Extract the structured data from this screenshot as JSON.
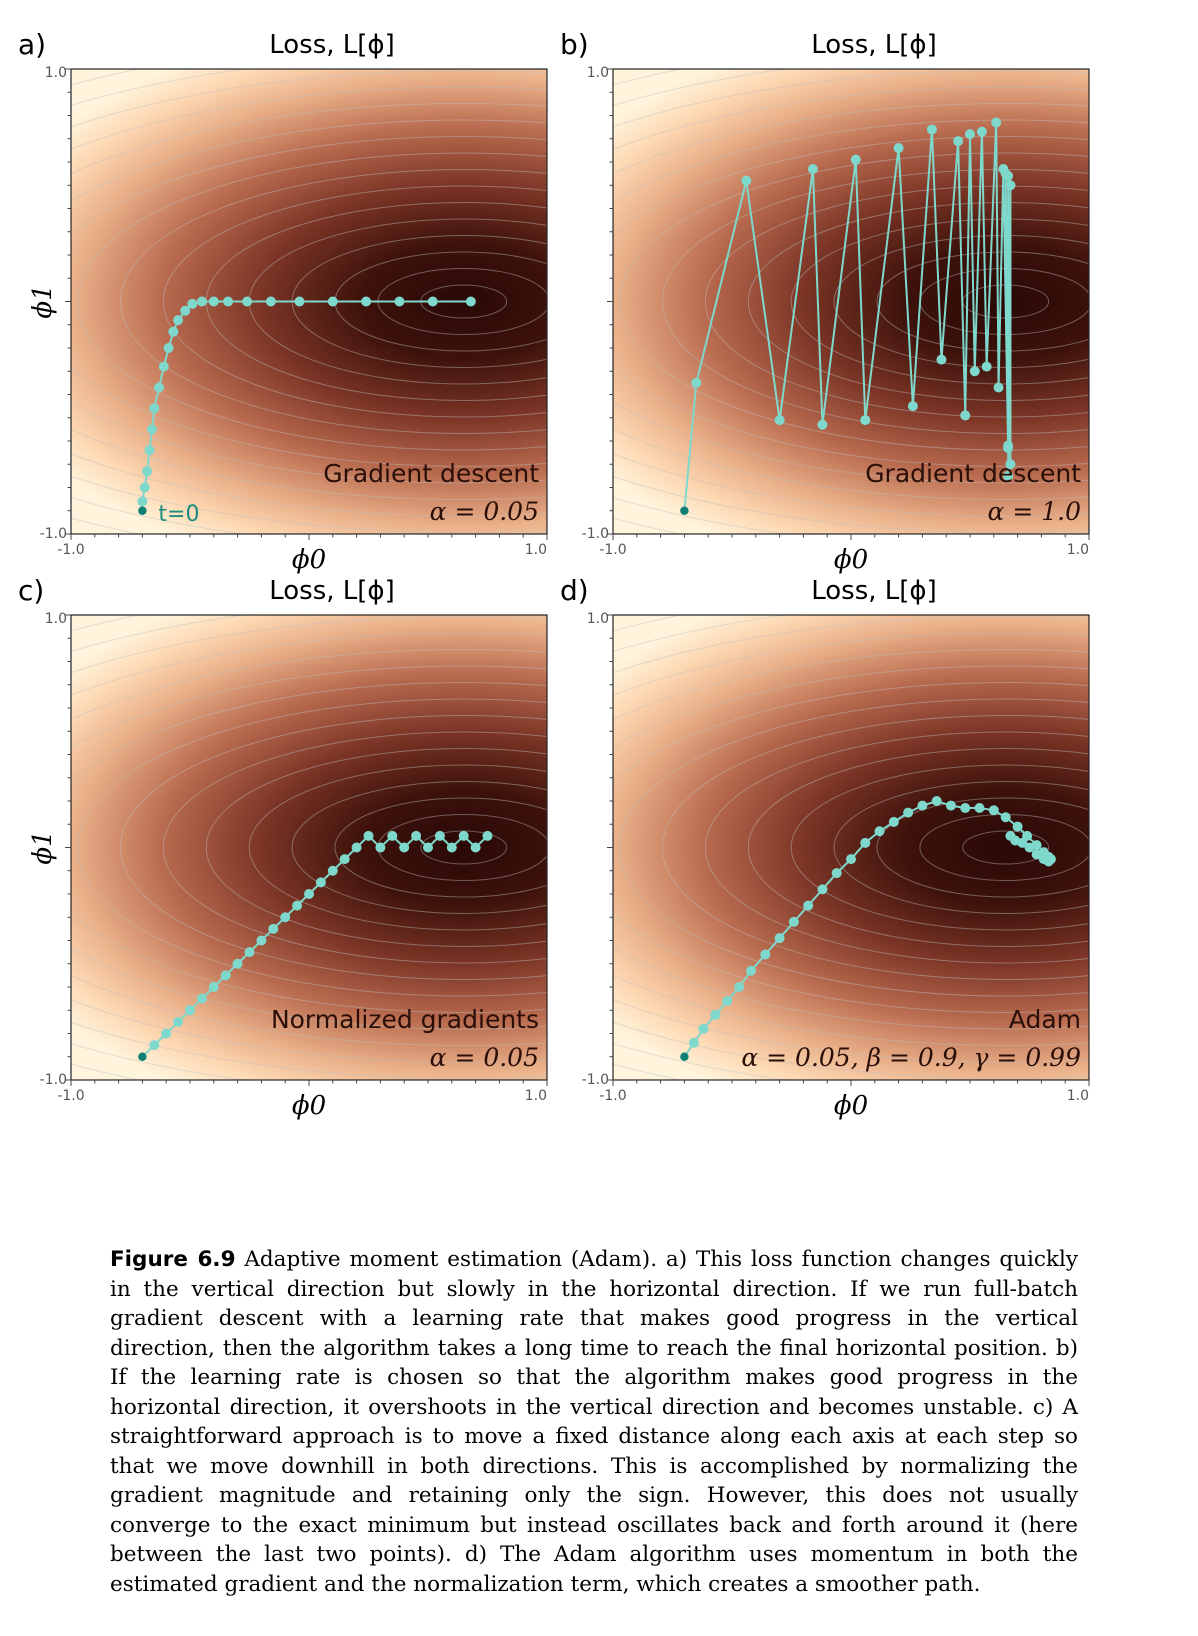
{
  "figure": {
    "caption_label": "Figure 6.9",
    "caption_text": "Adaptive moment estimation (Adam). a) This loss function changes quickly in the vertical direction but slowly in the horizontal direction. If we run full-batch gradient descent with a learning rate that makes good progress in the vertical direction, then the algorithm takes a long time to reach the final horizontal position. b) If the learning rate is chosen so that the algorithm makes good progress in the horizontal direction, it overshoots in the vertical direction and becomes unstable. c) A straightforward approach is to move a fixed distance along each axis at each step so that we move downhill in both directions. This is accomplished by normalizing the gradient magnitude and retaining only the sign. However, this does not usually converge to the exact minimum but instead oscillates back and forth around it (here between the last two points). d) The Adam algorithm uses momentum in both the estimated gradient and the normalization term, which creates a smoother path."
  },
  "colors": {
    "path": "#7fd8cc",
    "start_point": "#0e7f73",
    "loss_low": "#2a0806",
    "loss_high": "#fff4dc"
  },
  "chart_data": [
    {
      "type": "line",
      "panel_label": "a)",
      "title": "Loss, L[ϕ]",
      "xlabel": "ϕ0",
      "ylabel": "ϕ1",
      "xlim": [
        -1.0,
        1.0
      ],
      "ylim": [
        -1.0,
        1.0
      ],
      "tick_labels": {
        "x_min": "-1.0",
        "x_max": "1.0",
        "y_min": "-1.0",
        "y_max": "1.0"
      },
      "annotation_method": "Gradient descent",
      "annotation_params": "α = 0.05",
      "start_label": "t=0",
      "show_ylabel": true,
      "series": [
        {
          "x": [
            -0.7,
            -0.7,
            -0.69,
            -0.68,
            -0.67,
            -0.66,
            -0.65,
            -0.63,
            -0.61,
            -0.59,
            -0.57,
            -0.55,
            -0.52,
            -0.49,
            -0.45,
            -0.4,
            -0.34,
            -0.26,
            -0.16,
            -0.04,
            0.1,
            0.24,
            0.38,
            0.52,
            0.68
          ],
          "y": [
            -0.9,
            -0.86,
            -0.8,
            -0.73,
            -0.64,
            -0.55,
            -0.46,
            -0.37,
            -0.28,
            -0.2,
            -0.13,
            -0.08,
            -0.04,
            -0.01,
            0.0,
            0.0,
            0.0,
            0.0,
            0.0,
            0.0,
            0.0,
            0.0,
            0.0,
            0.0,
            0.0
          ]
        }
      ]
    },
    {
      "type": "line",
      "panel_label": "b)",
      "title": "Loss, L[ϕ]",
      "xlabel": "ϕ0",
      "ylabel": "",
      "xlim": [
        -1.0,
        1.0
      ],
      "ylim": [
        -1.0,
        1.0
      ],
      "tick_labels": {
        "x_min": "-1.0",
        "x_max": "1.0",
        "y_min": "-1.0",
        "y_max": "1.0"
      },
      "annotation_method": "Gradient descent",
      "annotation_params": "α = 1.0",
      "start_label": "",
      "show_ylabel": false,
      "series": [
        {
          "x": [
            -0.7,
            -0.65,
            -0.44,
            -0.3,
            -0.16,
            -0.12,
            0.02,
            0.06,
            0.2,
            0.26,
            0.34,
            0.38,
            0.45,
            0.48,
            0.5,
            0.52,
            0.55,
            0.57,
            0.61,
            0.62,
            0.64,
            0.66,
            0.65,
            0.66,
            0.66,
            0.67,
            0.67,
            0.66
          ],
          "y": [
            -0.9,
            -0.35,
            0.52,
            -0.51,
            0.57,
            -0.53,
            0.61,
            -0.51,
            0.66,
            -0.45,
            0.74,
            -0.25,
            0.69,
            -0.49,
            0.72,
            -0.3,
            0.73,
            -0.28,
            0.77,
            -0.37,
            0.57,
            -0.62,
            0.55,
            -0.63,
            0.54,
            -0.7,
            0.5,
            -0.75
          ]
        }
      ]
    },
    {
      "type": "line",
      "panel_label": "c)",
      "title": "Loss, L[ϕ]",
      "xlabel": "ϕ0",
      "ylabel": "ϕ1",
      "xlim": [
        -1.0,
        1.0
      ],
      "ylim": [
        -1.0,
        1.0
      ],
      "tick_labels": {
        "x_min": "-1.0",
        "x_max": "1.0",
        "y_min": "-1.0",
        "y_max": "1.0"
      },
      "annotation_method": "Normalized gradients",
      "annotation_params": "α = 0.05",
      "start_label": "",
      "show_ylabel": true,
      "series": [
        {
          "x": [
            -0.7,
            -0.65,
            -0.6,
            -0.55,
            -0.5,
            -0.45,
            -0.4,
            -0.35,
            -0.3,
            -0.25,
            -0.2,
            -0.15,
            -0.1,
            -0.05,
            0.0,
            0.05,
            0.1,
            0.15,
            0.2,
            0.25,
            0.3,
            0.35,
            0.4,
            0.45,
            0.5,
            0.55,
            0.6,
            0.65,
            0.7,
            0.75
          ],
          "y": [
            -0.9,
            -0.85,
            -0.8,
            -0.75,
            -0.7,
            -0.65,
            -0.6,
            -0.55,
            -0.5,
            -0.45,
            -0.4,
            -0.35,
            -0.3,
            -0.25,
            -0.2,
            -0.15,
            -0.1,
            -0.05,
            0.0,
            0.05,
            0.0,
            0.05,
            0.0,
            0.05,
            0.0,
            0.05,
            0.0,
            0.05,
            0.0,
            0.05
          ]
        }
      ]
    },
    {
      "type": "line",
      "panel_label": "d)",
      "title": "Loss, L[ϕ]",
      "xlabel": "ϕ0",
      "ylabel": "",
      "xlim": [
        -1.0,
        1.0
      ],
      "ylim": [
        -1.0,
        1.0
      ],
      "tick_labels": {
        "x_min": "-1.0",
        "x_max": "1.0",
        "y_min": "-1.0",
        "y_max": "1.0"
      },
      "annotation_method": "Adam",
      "annotation_params": "α = 0.05, β = 0.9, γ = 0.99",
      "start_label": "",
      "show_ylabel": false,
      "series": [
        {
          "x": [
            -0.7,
            -0.66,
            -0.62,
            -0.57,
            -0.52,
            -0.47,
            -0.42,
            -0.36,
            -0.3,
            -0.24,
            -0.18,
            -0.12,
            -0.06,
            0.0,
            0.06,
            0.12,
            0.18,
            0.24,
            0.3,
            0.36,
            0.42,
            0.48,
            0.54,
            0.6,
            0.65,
            0.7,
            0.74,
            0.78,
            0.81,
            0.83,
            0.84,
            0.83,
            0.81,
            0.78,
            0.75,
            0.72,
            0.69,
            0.67
          ],
          "y": [
            -0.9,
            -0.84,
            -0.78,
            -0.72,
            -0.66,
            -0.6,
            -0.53,
            -0.46,
            -0.39,
            -0.32,
            -0.25,
            -0.18,
            -0.11,
            -0.05,
            0.02,
            0.07,
            0.11,
            0.15,
            0.18,
            0.2,
            0.18,
            0.17,
            0.17,
            0.16,
            0.13,
            0.09,
            0.05,
            0.01,
            -0.02,
            -0.04,
            -0.05,
            -0.06,
            -0.05,
            -0.03,
            0.0,
            0.02,
            0.03,
            0.05
          ]
        }
      ]
    }
  ]
}
